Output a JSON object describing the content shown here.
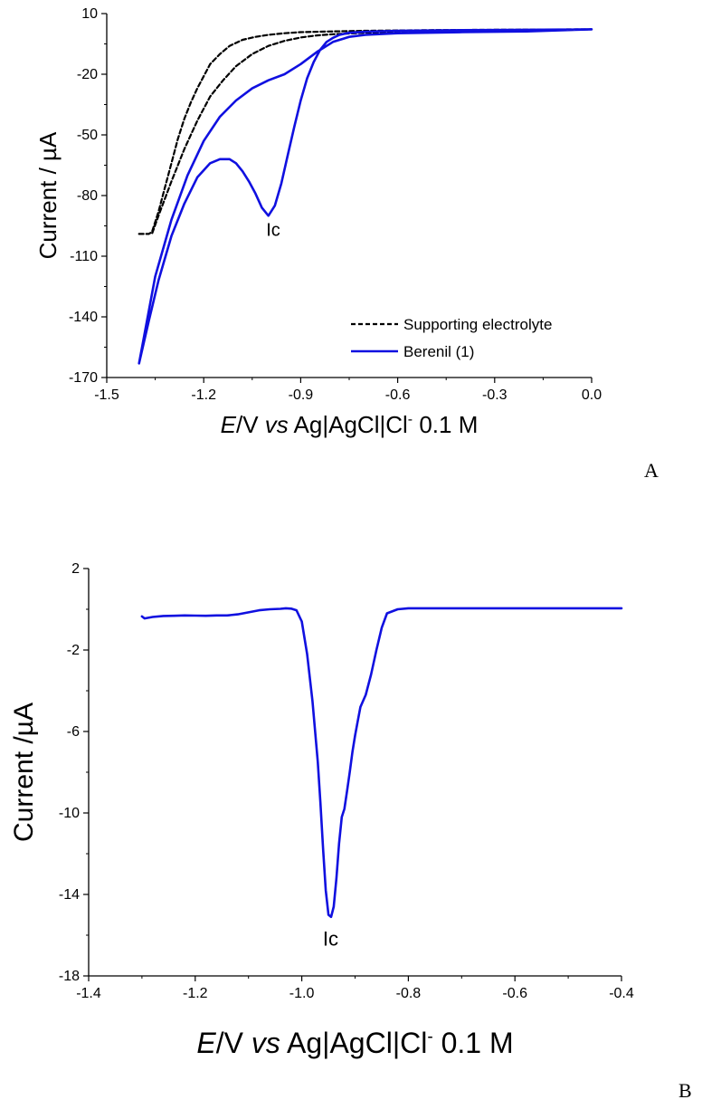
{
  "chart_data": [
    {
      "type": "line",
      "panel_label": "A",
      "xlabel": {
        "italic_prefix": "E",
        "mid": "/V ",
        "italic_vs": "vs",
        "rest": " Ag|AgCl|Cl",
        "superscript": "-",
        "tail": " 0.1 M"
      },
      "ylabel": "Current / µA",
      "xlim": [
        -1.5,
        0.0
      ],
      "ylim": [
        -170,
        10
      ],
      "xticks": [
        -1.5,
        -1.2,
        -0.9,
        -0.6,
        -0.3,
        0.0
      ],
      "xtick_labels": [
        "-1.5",
        "-1.2",
        "-0.9",
        "-0.6",
        "-0.3",
        "0.0"
      ],
      "yticks": [
        10,
        -20,
        -50,
        -80,
        -110,
        -140,
        -170
      ],
      "ytick_labels": [
        "10",
        "-20",
        "-50",
        "-80",
        "-110",
        "-140",
        "-170"
      ],
      "legend_position": "bottom-right",
      "annotations": [
        {
          "text": "Ic",
          "x": -0.985,
          "y": -100
        }
      ],
      "series": [
        {
          "name": "Supporting electrolyte",
          "color": "#000000",
          "dash": true,
          "x": [
            -1.4,
            -1.37,
            -1.36,
            -1.34,
            -1.32,
            -1.3,
            -1.28,
            -1.26,
            -1.24,
            -1.22,
            -1.2,
            -1.18,
            -1.15,
            -1.12,
            -1.08,
            -1.04,
            -1.0,
            -0.95,
            -0.9,
            -0.85,
            -0.8,
            -0.7,
            -0.5,
            -0.3,
            0.0,
            -0.3,
            -0.5,
            -0.7,
            -0.8,
            -0.85,
            -0.9,
            -0.95,
            -1.0,
            -1.05,
            -1.1,
            -1.14,
            -1.18,
            -1.22,
            -1.26,
            -1.3,
            -1.34,
            -1.36
          ],
          "y": [
            -99,
            -99,
            -98,
            -88,
            -76,
            -64,
            -52,
            -42,
            -34,
            -27,
            -21,
            -15,
            -10,
            -6,
            -3,
            -1.5,
            -0.5,
            0.3,
            0.8,
            1,
            1.2,
            1.5,
            1.8,
            2,
            2.2,
            1.4,
            1,
            0.5,
            -0.2,
            -0.8,
            -1.8,
            -3.5,
            -6,
            -10,
            -16,
            -23,
            -31,
            -43,
            -57,
            -73,
            -90,
            -99
          ]
        },
        {
          "name": "Berenil (1)",
          "color": "#1010e0",
          "dash": false,
          "x": [
            -1.4,
            -1.37,
            -1.34,
            -1.3,
            -1.26,
            -1.22,
            -1.18,
            -1.15,
            -1.12,
            -1.1,
            -1.08,
            -1.06,
            -1.04,
            -1.02,
            -1.0,
            -0.98,
            -0.96,
            -0.94,
            -0.92,
            -0.9,
            -0.88,
            -0.86,
            -0.84,
            -0.82,
            -0.8,
            -0.78,
            -0.75,
            -0.7,
            -0.6,
            -0.4,
            -0.2,
            0.0,
            -0.2,
            -0.4,
            -0.6,
            -0.7,
            -0.75,
            -0.8,
            -0.85,
            -0.9,
            -0.95,
            -1.0,
            -1.05,
            -1.1,
            -1.15,
            -1.2,
            -1.25,
            -1.3,
            -1.35,
            -1.4
          ],
          "y": [
            -163,
            -142,
            -122,
            -100,
            -84,
            -71,
            -64,
            -62,
            -62,
            -64,
            -68,
            -73,
            -79,
            -86,
            -90,
            -85,
            -74,
            -60,
            -46,
            -33,
            -22,
            -14,
            -8,
            -4,
            -2,
            -0.5,
            0.5,
            1,
            1.5,
            1.8,
            2,
            2.2,
            1.2,
            0.8,
            0.3,
            -0.5,
            -1.5,
            -4,
            -9,
            -15,
            -20,
            -23,
            -27,
            -33,
            -41,
            -53,
            -70,
            -92,
            -120,
            -163
          ]
        }
      ]
    },
    {
      "type": "line",
      "panel_label": "B",
      "xlabel": {
        "italic_prefix": "E",
        "mid": "/V ",
        "italic_vs": "vs",
        "rest": " Ag|AgCl|Cl",
        "superscript": "-",
        "tail": " 0.1 M"
      },
      "ylabel": "Current /µA",
      "xlim": [
        -1.4,
        -0.4
      ],
      "ylim": [
        -18,
        2
      ],
      "xticks": [
        -1.4,
        -1.2,
        -1.0,
        -0.8,
        -0.6,
        -0.4
      ],
      "xtick_labels": [
        "-1.4",
        "-1.2",
        "-1.0",
        "-0.8",
        "-0.6",
        "-0.4"
      ],
      "yticks": [
        2,
        -2,
        -6,
        -10,
        -14,
        -18
      ],
      "ytick_labels": [
        "2",
        "-2",
        "-6",
        "-10",
        "-14",
        "-18"
      ],
      "annotations": [
        {
          "text": "Ic",
          "x": -0.946,
          "y": -16.5
        }
      ],
      "series": [
        {
          "color": "#1010e0",
          "dash": false,
          "x": [
            -1.3,
            -1.295,
            -1.28,
            -1.26,
            -1.24,
            -1.22,
            -1.2,
            -1.18,
            -1.16,
            -1.14,
            -1.12,
            -1.1,
            -1.08,
            -1.06,
            -1.04,
            -1.03,
            -1.02,
            -1.01,
            -1.0,
            -0.99,
            -0.98,
            -0.97,
            -0.965,
            -0.96,
            -0.955,
            -0.95,
            -0.945,
            -0.94,
            -0.935,
            -0.93,
            -0.925,
            -0.92,
            -0.915,
            -0.91,
            -0.905,
            -0.9,
            -0.895,
            -0.89,
            -0.88,
            -0.87,
            -0.86,
            -0.85,
            -0.84,
            -0.82,
            -0.8,
            -0.75,
            -0.7,
            -0.6,
            -0.5,
            -0.4
          ],
          "y": [
            -0.35,
            -0.45,
            -0.38,
            -0.33,
            -0.32,
            -0.3,
            -0.31,
            -0.32,
            -0.3,
            -0.3,
            -0.25,
            -0.15,
            -0.05,
            0,
            0.02,
            0.05,
            0.03,
            -0.05,
            -0.6,
            -2.2,
            -4.5,
            -7.5,
            -9.5,
            -11.8,
            -13.8,
            -15.0,
            -15.1,
            -14.6,
            -13.2,
            -11.5,
            -10.2,
            -9.8,
            -8.9,
            -8.0,
            -7.0,
            -6.2,
            -5.5,
            -4.8,
            -4.2,
            -3.2,
            -2.0,
            -0.9,
            -0.2,
            0.0,
            0.05,
            0.05,
            0.05,
            0.05,
            0.05,
            0.05
          ]
        }
      ]
    }
  ]
}
